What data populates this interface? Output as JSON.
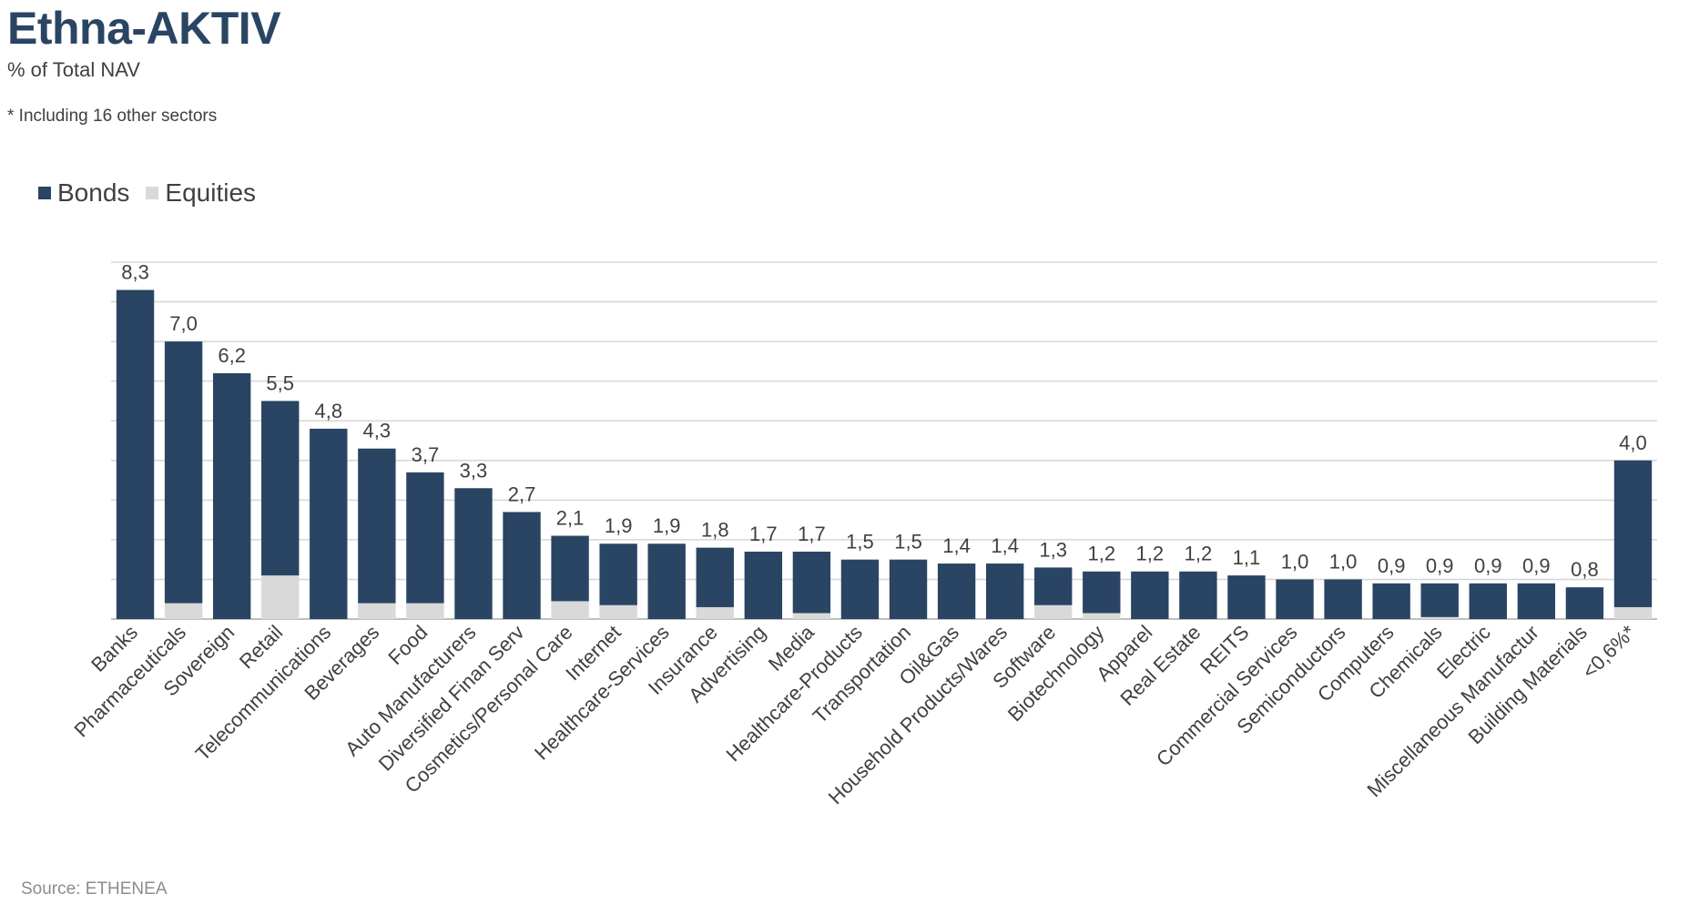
{
  "header": {
    "title": "Ethna-AKTIV",
    "subtitle": "% of Total NAV",
    "footnote": "* Including 16 other sectors"
  },
  "footer": {
    "source": "Source: ETHENEA"
  },
  "colors": {
    "bonds": "#2a4563",
    "equities": "#d9d9d9",
    "grid": "#d6d6d6",
    "axis": "#bfbfbf"
  },
  "chart_data": {
    "type": "bar",
    "stacked": true,
    "grid": true,
    "legend": "top-left",
    "ylim": [
      0,
      9
    ],
    "categories": [
      "Banks",
      "Pharmaceuticals",
      "Sovereign",
      "Retail",
      "Telecommunications",
      "Beverages",
      "Food",
      "Auto Manufacturers",
      "Diversified Finan Serv",
      "Cosmetics/Personal Care",
      "Internet",
      "Healthcare-Services",
      "Insurance",
      "Advertising",
      "Media",
      "Healthcare-Products",
      "Transportation",
      "Oil&Gas",
      "Household Products/Wares",
      "Software",
      "Biotechnology",
      "Apparel",
      "Real Estate",
      "REITS",
      "Commercial Services",
      "Semiconductors",
      "Computers",
      "Chemicals",
      "Electric",
      "Miscellaneous Manufactur",
      "Building Materials",
      "<0,6%*"
    ],
    "totals": [
      8.3,
      7.0,
      6.2,
      5.5,
      4.8,
      4.3,
      3.7,
      3.3,
      2.7,
      2.1,
      1.9,
      1.9,
      1.8,
      1.7,
      1.7,
      1.5,
      1.5,
      1.4,
      1.4,
      1.3,
      1.2,
      1.2,
      1.2,
      1.1,
      1.0,
      1.0,
      0.9,
      0.9,
      0.9,
      0.9,
      0.8,
      4.0
    ],
    "total_labels": [
      "8,3",
      "7,0",
      "6,2",
      "5,5",
      "4,8",
      "4,3",
      "3,7",
      "3,3",
      "2,7",
      "2,1",
      "1,9",
      "1,9",
      "1,8",
      "1,7",
      "1,7",
      "1,5",
      "1,5",
      "1,4",
      "1,4",
      "1,3",
      "1,2",
      "1,2",
      "1,2",
      "1,1",
      "1,0",
      "1,0",
      "0,9",
      "0,9",
      "0,9",
      "0,9",
      "0,8",
      "4,0"
    ],
    "series": [
      {
        "name": "Bonds",
        "values": [
          8.3,
          6.6,
          6.2,
          4.4,
          4.8,
          3.9,
          3.3,
          3.3,
          2.7,
          1.65,
          1.55,
          1.9,
          1.5,
          1.7,
          1.55,
          1.5,
          1.5,
          1.4,
          1.4,
          0.95,
          1.05,
          1.2,
          1.2,
          1.1,
          1.0,
          1.0,
          0.9,
          0.85,
          0.9,
          0.9,
          0.8,
          3.7
        ]
      },
      {
        "name": "Equities",
        "values": [
          0,
          0.4,
          0,
          1.1,
          0,
          0.4,
          0.4,
          0,
          0,
          0.45,
          0.35,
          0,
          0.3,
          0,
          0.15,
          0,
          0,
          0,
          0,
          0.35,
          0.15,
          0,
          0,
          0,
          0,
          0,
          0,
          0.05,
          0,
          0,
          0,
          0.3
        ]
      }
    ]
  }
}
